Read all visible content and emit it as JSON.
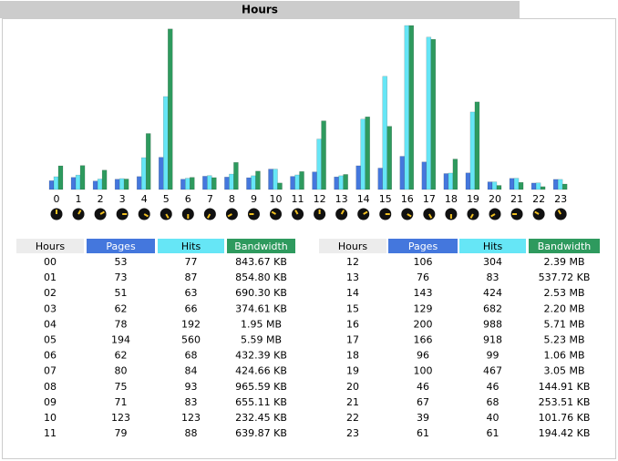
{
  "title": "Hours",
  "chart_data": {
    "type": "bar",
    "categories": [
      "0",
      "1",
      "2",
      "3",
      "4",
      "5",
      "6",
      "7",
      "8",
      "9",
      "10",
      "11",
      "12",
      "13",
      "14",
      "15",
      "16",
      "17",
      "18",
      "19",
      "20",
      "21",
      "22",
      "23"
    ],
    "series": [
      {
        "name": "Pages",
        "color": "#4477dd",
        "values": [
          53,
          73,
          51,
          62,
          78,
          194,
          62,
          80,
          75,
          71,
          123,
          79,
          106,
          76,
          143,
          129,
          200,
          166,
          96,
          100,
          46,
          67,
          39,
          61
        ]
      },
      {
        "name": "Hits",
        "color": "#66e6f6",
        "values": [
          77,
          87,
          63,
          66,
          192,
          560,
          68,
          84,
          93,
          83,
          123,
          88,
          304,
          83,
          424,
          682,
          988,
          918,
          99,
          467,
          46,
          68,
          40,
          61
        ]
      },
      {
        "name": "Bandwidth",
        "color": "#2e9a5e",
        "values": [
          843.67,
          854.8,
          690.3,
          374.61,
          1996.8,
          5724.16,
          432.39,
          424.66,
          965.59,
          655.11,
          232.45,
          639.87,
          2447.36,
          537.72,
          2590.72,
          2252.8,
          5847.04,
          5355.52,
          1085.44,
          3123.2,
          144.91,
          253.51,
          101.76,
          194.42
        ],
        "value_labels": [
          "843.67 KB",
          "854.80 KB",
          "690.30 KB",
          "374.61 KB",
          "1.95 MB",
          "5.59 MB",
          "432.39 KB",
          "424.66 KB",
          "965.59 KB",
          "655.11 KB",
          "232.45 KB",
          "639.87 KB",
          "2.39 MB",
          "537.72 KB",
          "2.53 MB",
          "2.20 MB",
          "5.71 MB",
          "5.23 MB",
          "1.06 MB",
          "3.05 MB",
          "144.91 KB",
          "253.51 KB",
          "101.76 KB",
          "194.42 KB"
        ]
      }
    ]
  },
  "table": {
    "hours_header": "Hours",
    "hour_labels": [
      "00",
      "01",
      "02",
      "03",
      "04",
      "05",
      "06",
      "07",
      "08",
      "09",
      "10",
      "11",
      "12",
      "13",
      "14",
      "15",
      "16",
      "17",
      "18",
      "19",
      "20",
      "21",
      "22",
      "23"
    ]
  }
}
